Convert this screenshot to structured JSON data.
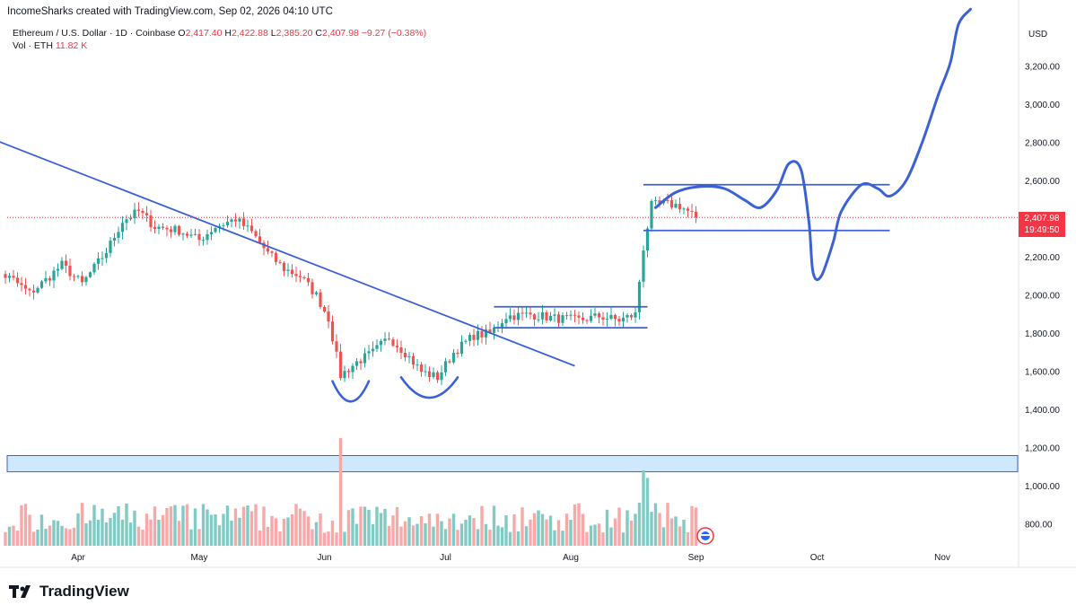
{
  "header": {
    "credit": "IncomeSharks created with TradingView.com, Sep 02, 2026 04:10 UTC"
  },
  "legend": {
    "symbol": "Ethereum / U.S. Dollar · 1D · Coinbase",
    "open_label": "O",
    "open": "2,417.40",
    "high_label": "H",
    "high": "2,422.88",
    "low_label": "L",
    "low": "2,385.20",
    "close_label": "C",
    "close": "2,407.98",
    "change": "−9.27 (−0.38%)",
    "vol_label": "Vol · ETH",
    "vol": "11.82 K"
  },
  "price_tag": {
    "price": "2,407.98",
    "countdown": "19:49:50"
  },
  "footer": {
    "brand": "TradingView"
  },
  "colors": {
    "up": "#26a69a",
    "down": "#ef5350",
    "drawing": "#3a62d6",
    "zone": "#bbdefb",
    "price_line": "#f23645"
  },
  "chart_data": {
    "type": "candlestick",
    "currency": "USD",
    "y_ticks": [
      800,
      1000,
      1200,
      1400,
      1600,
      1800,
      2000,
      2200,
      2400,
      2600,
      2800,
      3000,
      3200
    ],
    "y_tick_labels": [
      "800.00",
      "1,000.00",
      "1,200.00",
      "1,400.00",
      "1,600.00",
      "1,800.00",
      "2,000.00",
      "2,200.00",
      "2,400.00",
      "2,600.00",
      "2,800.00",
      "3,000.00",
      "3,200.00"
    ],
    "x_labels": [
      {
        "label": "Apr",
        "date": "2026-04-01"
      },
      {
        "label": "May",
        "date": "2026-05-01"
      },
      {
        "label": "Jun",
        "date": "2026-06-01"
      },
      {
        "label": "Jul",
        "date": "2026-07-01"
      },
      {
        "label": "Aug",
        "date": "2026-08-01"
      },
      {
        "label": "Sep",
        "date": "2026-09-01"
      },
      {
        "label": "Oct",
        "date": "2026-10-01"
      },
      {
        "label": "Nov",
        "date": "2026-11-01"
      }
    ],
    "last_price": 2407.98,
    "anchors": [
      {
        "date": "2026-03-08",
        "close": 2250
      },
      {
        "date": "2026-03-12",
        "close": 2120
      },
      {
        "date": "2026-03-16",
        "close": 2080
      },
      {
        "date": "2026-03-20",
        "close": 2010
      },
      {
        "date": "2026-03-24",
        "close": 2080
      },
      {
        "date": "2026-03-28",
        "close": 2160
      },
      {
        "date": "2026-04-02",
        "close": 2060
      },
      {
        "date": "2026-04-08",
        "close": 2230
      },
      {
        "date": "2026-04-12",
        "close": 2390
      },
      {
        "date": "2026-04-16",
        "close": 2440
      },
      {
        "date": "2026-04-20",
        "close": 2360
      },
      {
        "date": "2026-04-26",
        "close": 2340
      },
      {
        "date": "2026-05-01",
        "close": 2290
      },
      {
        "date": "2026-05-05",
        "close": 2360
      },
      {
        "date": "2026-05-10",
        "close": 2400
      },
      {
        "date": "2026-05-14",
        "close": 2330
      },
      {
        "date": "2026-05-18",
        "close": 2220
      },
      {
        "date": "2026-05-22",
        "close": 2140
      },
      {
        "date": "2026-05-26",
        "close": 2100
      },
      {
        "date": "2026-05-30",
        "close": 2000
      },
      {
        "date": "2026-06-02",
        "close": 1880
      },
      {
        "date": "2026-06-05",
        "close": 1580
      },
      {
        "date": "2026-06-09",
        "close": 1650
      },
      {
        "date": "2026-06-13",
        "close": 1700
      },
      {
        "date": "2026-06-17",
        "close": 1780
      },
      {
        "date": "2026-06-21",
        "close": 1700
      },
      {
        "date": "2026-06-25",
        "close": 1600
      },
      {
        "date": "2026-06-29",
        "close": 1570
      },
      {
        "date": "2026-07-03",
        "close": 1700
      },
      {
        "date": "2026-07-08",
        "close": 1790
      },
      {
        "date": "2026-07-12",
        "close": 1800
      },
      {
        "date": "2026-07-16",
        "close": 1890
      },
      {
        "date": "2026-07-22",
        "close": 1900
      },
      {
        "date": "2026-07-28",
        "close": 1880
      },
      {
        "date": "2026-08-03",
        "close": 1870
      },
      {
        "date": "2026-08-08",
        "close": 1890
      },
      {
        "date": "2026-08-13",
        "close": 1870
      },
      {
        "date": "2026-08-17",
        "close": 1900
      },
      {
        "date": "2026-08-19",
        "close": 2250
      },
      {
        "date": "2026-08-21",
        "close": 2470
      },
      {
        "date": "2026-08-24",
        "close": 2480
      },
      {
        "date": "2026-08-28",
        "close": 2470
      },
      {
        "date": "2026-09-01",
        "close": 2410
      }
    ],
    "volume_spikes": [
      {
        "date": "2026-06-05",
        "level": 1.0
      },
      {
        "date": "2026-08-19",
        "level": 0.7
      },
      {
        "date": "2026-08-20",
        "level": 0.63
      }
    ],
    "drawings": {
      "trendline": [
        {
          "date": "2026-03-01",
          "price": 2900
        },
        {
          "date": "2026-08-02",
          "price": 1630
        }
      ],
      "consolidation_box": {
        "start": "2026-07-13",
        "end": "2026-08-20",
        "top": 1940,
        "bottom": 1830
      },
      "range_box": {
        "start": "2026-08-19",
        "end": "2026-10-19",
        "top": 2580,
        "bottom": 2340
      },
      "demand_zone": {
        "top": 1160,
        "bottom": 1075
      },
      "projection_path": [
        [
          "2026-08-22",
          2460
        ],
        [
          "2026-08-27",
          2540
        ],
        [
          "2026-09-02",
          2570
        ],
        [
          "2026-09-08",
          2560
        ],
        [
          "2026-09-13",
          2500
        ],
        [
          "2026-09-17",
          2460
        ],
        [
          "2026-09-21",
          2550
        ],
        [
          "2026-09-24",
          2690
        ],
        [
          "2026-09-27",
          2660
        ],
        [
          "2026-09-29",
          2380
        ],
        [
          "2026-09-30",
          2120
        ],
        [
          "2026-10-02",
          2100
        ],
        [
          "2026-10-05",
          2280
        ],
        [
          "2026-10-07",
          2440
        ],
        [
          "2026-10-12",
          2580
        ],
        [
          "2026-10-16",
          2560
        ],
        [
          "2026-10-19",
          2520
        ],
        [
          "2026-10-23",
          2600
        ],
        [
          "2026-10-27",
          2800
        ],
        [
          "2026-10-31",
          3050
        ],
        [
          "2026-11-03",
          3220
        ],
        [
          "2026-11-05",
          3420
        ],
        [
          "2026-11-08",
          3500
        ]
      ],
      "double_bottom_arcs": [
        {
          "start": "2026-06-03",
          "end": "2026-06-12",
          "low": 1440
        },
        {
          "start": "2026-06-20",
          "end": "2026-07-04",
          "low": 1460
        }
      ]
    }
  }
}
